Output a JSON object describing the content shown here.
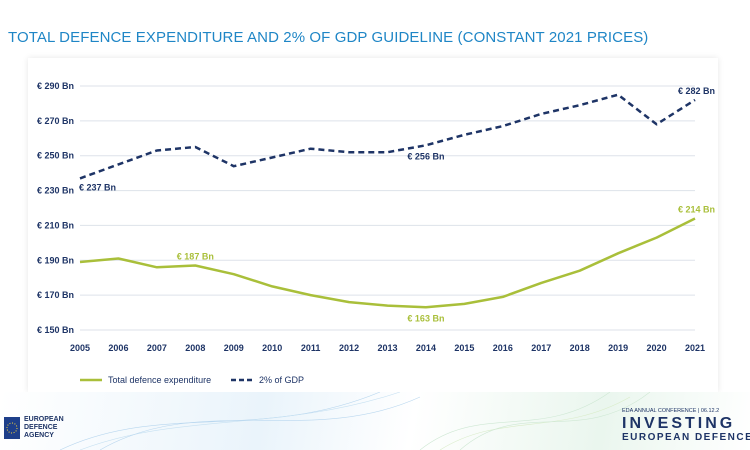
{
  "page_title": "TOTAL DEFENCE EXPENDITURE AND 2% OF GDP GUIDELINE (CONSTANT 2021 PRICES)",
  "colors": {
    "title": "#1f86c6",
    "gdp_line": "#1e3466",
    "expenditure_line": "#a9bf3a",
    "grid": "#dde2ea",
    "text_dark": "#1e3466"
  },
  "chart_data": {
    "type": "line",
    "title": "TOTAL DEFENCE EXPENDITURE AND 2% OF GDP GUIDELINE (CONSTANT 2021 PRICES)",
    "xlabel": "",
    "ylabel": "",
    "ylim": [
      150,
      290
    ],
    "grid": true,
    "legend_position": "bottom-left",
    "categories": [
      "2005",
      "2006",
      "2007",
      "2008",
      "2009",
      "2010",
      "2011",
      "2012",
      "2013",
      "2014",
      "2015",
      "2016",
      "2017",
      "2018",
      "2019",
      "2020",
      "2021"
    ],
    "y_ticks": [
      150,
      170,
      190,
      210,
      230,
      250,
      270,
      290
    ],
    "y_tick_labels": [
      "€ 150 Bn",
      "€ 170 Bn",
      "€ 190 Bn",
      "€ 210 Bn",
      "€ 230 Bn",
      "€ 250 Bn",
      "€ 270 Bn",
      "€ 290 Bn"
    ],
    "series": [
      {
        "name": "Total defence expenditure",
        "style": "solid",
        "values": [
          189,
          191,
          186,
          187,
          182,
          175,
          170,
          166,
          164,
          163,
          165,
          169,
          177,
          184,
          194,
          203,
          214
        ]
      },
      {
        "name": "2% of GDP",
        "style": "dashed",
        "values": [
          237,
          245,
          253,
          255,
          244,
          249,
          254,
          252,
          252,
          256,
          262,
          267,
          274,
          279,
          285,
          268,
          282
        ]
      }
    ],
    "annotations": [
      {
        "series": 1,
        "index": 0,
        "text": "€ 237 Bn",
        "anchor": "below-right"
      },
      {
        "series": 1,
        "index": 9,
        "text": "€ 256 Bn",
        "anchor": "below"
      },
      {
        "series": 1,
        "index": 16,
        "text": "€ 282 Bn",
        "anchor": "above-left"
      },
      {
        "series": 0,
        "index": 3,
        "text": "€ 187 Bn",
        "anchor": "above"
      },
      {
        "series": 0,
        "index": 9,
        "text": "€ 163 Bn",
        "anchor": "below"
      },
      {
        "series": 0,
        "index": 16,
        "text": "€ 214 Bn",
        "anchor": "above-left"
      }
    ]
  },
  "footer": {
    "logo_lines": [
      "EUROPEAN",
      "DEFENCE",
      "AGENCY"
    ],
    "conference_date": "EDA ANNUAL CONFERENCE | 06.12.2",
    "conference_title": "INVESTING",
    "conference_subtitle": "EUROPEAN DEFENCE"
  }
}
